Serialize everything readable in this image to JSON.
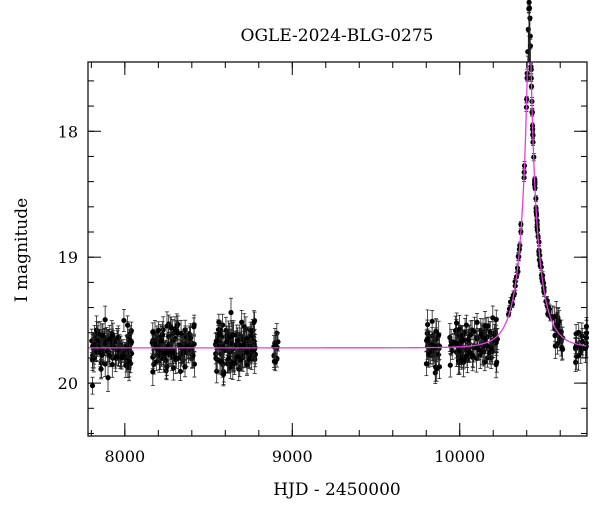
{
  "chart_data": {
    "type": "scatter",
    "title": "OGLE-2024-BLG-0275",
    "xlabel": "HJD - 2450000",
    "ylabel": "I magnitude",
    "xlim": [
      7780,
      10760
    ],
    "ylim": [
      20.42,
      17.45
    ],
    "y_inverted": true,
    "grid": false,
    "xticks": [
      {
        "value": 8000,
        "label": "8000"
      },
      {
        "value": 9000,
        "label": "9000"
      },
      {
        "value": 10000,
        "label": "10000"
      }
    ],
    "yticks": [
      {
        "value": 18,
        "label": "18"
      },
      {
        "value": 19,
        "label": "19"
      },
      {
        "value": 20,
        "label": "20"
      }
    ],
    "x_minor_step": 200,
    "y_minor_step": 0.2,
    "baseline_magnitude": 19.72,
    "model": {
      "color": "#e040e0",
      "t0": 10415,
      "u0": 0.0835,
      "tE": 110
    },
    "observation_seasons": [
      {
        "start": 7800,
        "end": 8040
      },
      {
        "start": 8160,
        "end": 8420
      },
      {
        "start": 8540,
        "end": 8780
      },
      {
        "start": 8890,
        "end": 8920
      },
      {
        "start": 9800,
        "end": 9880
      },
      {
        "start": 9940,
        "end": 10230
      },
      {
        "start": 10290,
        "end": 10620
      },
      {
        "start": 10690,
        "end": 10760
      }
    ],
    "points_per_season": [
      110,
      120,
      130,
      10,
      40,
      110,
      120,
      20
    ],
    "scatter_sigma_mag": 0.08,
    "error_bar_mag": 0.09,
    "marker_color": "#000000"
  }
}
